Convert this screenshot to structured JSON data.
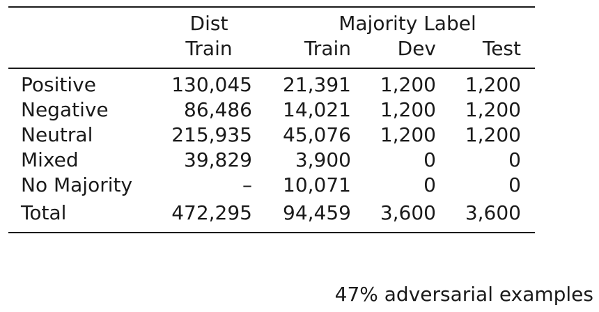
{
  "table": {
    "header": {
      "group1": "Dist",
      "group2": "Majority Label",
      "columns": [
        "Train",
        "Train",
        "Dev",
        "Test"
      ]
    },
    "rows": [
      {
        "label": "Positive",
        "values": [
          "130,045",
          "21,391",
          "1,200",
          "1,200"
        ]
      },
      {
        "label": "Negative",
        "values": [
          "86,486",
          "14,021",
          "1,200",
          "1,200"
        ]
      },
      {
        "label": "Neutral",
        "values": [
          "215,935",
          "45,076",
          "1,200",
          "1,200"
        ]
      },
      {
        "label": "Mixed",
        "values": [
          "39,829",
          "3,900",
          "0",
          "0"
        ]
      },
      {
        "label": "No Majority",
        "values": [
          "–",
          "10,071",
          "0",
          "0"
        ]
      },
      {
        "label": "Total",
        "values": [
          "472,295",
          "94,459",
          "3,600",
          "3,600"
        ]
      }
    ]
  },
  "caption": "47% adversarial examples"
}
